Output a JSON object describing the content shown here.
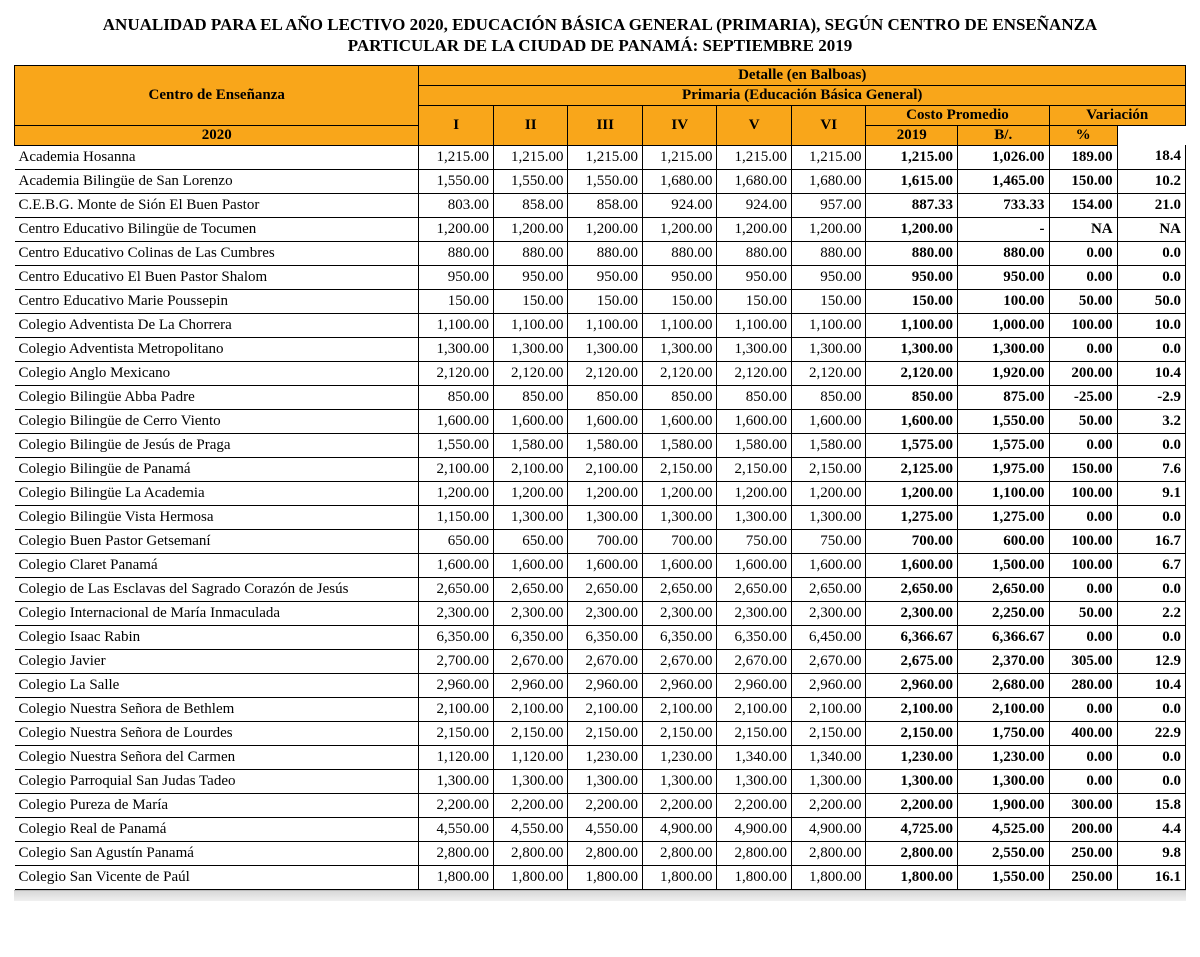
{
  "title_line1": "ANUALIDAD PARA EL AÑO LECTIVO 2020,  EDUCACIÓN BÁSICA GENERAL (PRIMARIA), SEGÚN CENTRO DE ENSEÑANZA",
  "title_line2": "PARTICULAR DE LA CIUDAD DE PANAMÁ:  SEPTIEMBRE 2019",
  "header": {
    "centro": "Centro de Enseñanza",
    "detalle": "Detalle (en Balboas)",
    "primaria": "Primaria (Educación Básica General)",
    "grades": [
      "I",
      "II",
      "III",
      "IV",
      "V",
      "VI"
    ],
    "costo": "Costo Promedio",
    "variacion": "Variación",
    "y2020": "2020",
    "y2019": "2019",
    "bal": "B/.",
    "pct": "%"
  },
  "colors": {
    "header_bg": "#f9a61a",
    "text": "#000000",
    "border": "#000000",
    "background": "#ffffff"
  },
  "rows": [
    {
      "name": "Academia Hosanna",
      "g": [
        "1,215.00",
        "1,215.00",
        "1,215.00",
        "1,215.00",
        "1,215.00",
        "1,215.00"
      ],
      "avg20": "1,215.00",
      "avg19": "1,026.00",
      "varb": "189.00",
      "varp": "18.4"
    },
    {
      "name": "Academia Bilingüe de San Lorenzo",
      "g": [
        "1,550.00",
        "1,550.00",
        "1,550.00",
        "1,680.00",
        "1,680.00",
        "1,680.00"
      ],
      "avg20": "1,615.00",
      "avg19": "1,465.00",
      "varb": "150.00",
      "varp": "10.2"
    },
    {
      "name": "C.E.B.G. Monte de Sión El Buen Pastor",
      "g": [
        "803.00",
        "858.00",
        "858.00",
        "924.00",
        "924.00",
        "957.00"
      ],
      "avg20": "887.33",
      "avg19": "733.33",
      "varb": "154.00",
      "varp": "21.0"
    },
    {
      "name": "Centro Educativo Bilingüe de Tocumen",
      "g": [
        "1,200.00",
        "1,200.00",
        "1,200.00",
        "1,200.00",
        "1,200.00",
        "1,200.00"
      ],
      "avg20": "1,200.00",
      "avg19": "-",
      "varb": "NA",
      "varp": "NA"
    },
    {
      "name": "Centro Educativo Colinas de Las Cumbres",
      "g": [
        "880.00",
        "880.00",
        "880.00",
        "880.00",
        "880.00",
        "880.00"
      ],
      "avg20": "880.00",
      "avg19": "880.00",
      "varb": "0.00",
      "varp": "0.0"
    },
    {
      "name": "Centro Educativo El Buen Pastor Shalom",
      "g": [
        "950.00",
        "950.00",
        "950.00",
        "950.00",
        "950.00",
        "950.00"
      ],
      "avg20": "950.00",
      "avg19": "950.00",
      "varb": "0.00",
      "varp": "0.0"
    },
    {
      "name": "Centro Educativo Marie Poussepin",
      "g": [
        "150.00",
        "150.00",
        "150.00",
        "150.00",
        "150.00",
        "150.00"
      ],
      "avg20": "150.00",
      "avg19": "100.00",
      "varb": "50.00",
      "varp": "50.0"
    },
    {
      "name": "Colegio Adventista De La Chorrera",
      "g": [
        "1,100.00",
        "1,100.00",
        "1,100.00",
        "1,100.00",
        "1,100.00",
        "1,100.00"
      ],
      "avg20": "1,100.00",
      "avg19": "1,000.00",
      "varb": "100.00",
      "varp": "10.0"
    },
    {
      "name": "Colegio Adventista Metropolitano",
      "g": [
        "1,300.00",
        "1,300.00",
        "1,300.00",
        "1,300.00",
        "1,300.00",
        "1,300.00"
      ],
      "avg20": "1,300.00",
      "avg19": "1,300.00",
      "varb": "0.00",
      "varp": "0.0"
    },
    {
      "name": "Colegio Anglo Mexicano",
      "g": [
        "2,120.00",
        "2,120.00",
        "2,120.00",
        "2,120.00",
        "2,120.00",
        "2,120.00"
      ],
      "avg20": "2,120.00",
      "avg19": "1,920.00",
      "varb": "200.00",
      "varp": "10.4"
    },
    {
      "name": "Colegio Bilingüe Abba Padre",
      "g": [
        "850.00",
        "850.00",
        "850.00",
        "850.00",
        "850.00",
        "850.00"
      ],
      "avg20": "850.00",
      "avg19": "875.00",
      "varb": "-25.00",
      "varp": "-2.9"
    },
    {
      "name": "Colegio Bilingüe de Cerro Viento",
      "g": [
        "1,600.00",
        "1,600.00",
        "1,600.00",
        "1,600.00",
        "1,600.00",
        "1,600.00"
      ],
      "avg20": "1,600.00",
      "avg19": "1,550.00",
      "varb": "50.00",
      "varp": "3.2"
    },
    {
      "name": "Colegio Bilingüe de Jesús de Praga",
      "g": [
        "1,550.00",
        "1,580.00",
        "1,580.00",
        "1,580.00",
        "1,580.00",
        "1,580.00"
      ],
      "avg20": "1,575.00",
      "avg19": "1,575.00",
      "varb": "0.00",
      "varp": "0.0"
    },
    {
      "name": "Colegio Bilingüe de Panamá",
      "g": [
        "2,100.00",
        "2,100.00",
        "2,100.00",
        "2,150.00",
        "2,150.00",
        "2,150.00"
      ],
      "avg20": "2,125.00",
      "avg19": "1,975.00",
      "varb": "150.00",
      "varp": "7.6"
    },
    {
      "name": "Colegio Bilingüe La Academia",
      "g": [
        "1,200.00",
        "1,200.00",
        "1,200.00",
        "1,200.00",
        "1,200.00",
        "1,200.00"
      ],
      "avg20": "1,200.00",
      "avg19": "1,100.00",
      "varb": "100.00",
      "varp": "9.1"
    },
    {
      "name": "Colegio Bilingüe Vista Hermosa",
      "g": [
        "1,150.00",
        "1,300.00",
        "1,300.00",
        "1,300.00",
        "1,300.00",
        "1,300.00"
      ],
      "avg20": "1,275.00",
      "avg19": "1,275.00",
      "varb": "0.00",
      "varp": "0.0"
    },
    {
      "name": "Colegio Buen Pastor Getsemaní",
      "g": [
        "650.00",
        "650.00",
        "700.00",
        "700.00",
        "750.00",
        "750.00"
      ],
      "avg20": "700.00",
      "avg19": "600.00",
      "varb": "100.00",
      "varp": "16.7"
    },
    {
      "name": "Colegio Claret Panamá",
      "g": [
        "1,600.00",
        "1,600.00",
        "1,600.00",
        "1,600.00",
        "1,600.00",
        "1,600.00"
      ],
      "avg20": "1,600.00",
      "avg19": "1,500.00",
      "varb": "100.00",
      "varp": "6.7"
    },
    {
      "name": "Colegio de Las Esclavas del Sagrado Corazón de Jesús",
      "g": [
        "2,650.00",
        "2,650.00",
        "2,650.00",
        "2,650.00",
        "2,650.00",
        "2,650.00"
      ],
      "avg20": "2,650.00",
      "avg19": "2,650.00",
      "varb": "0.00",
      "varp": "0.0"
    },
    {
      "name": "Colegio Internacional de María Inmaculada",
      "g": [
        "2,300.00",
        "2,300.00",
        "2,300.00",
        "2,300.00",
        "2,300.00",
        "2,300.00"
      ],
      "avg20": "2,300.00",
      "avg19": "2,250.00",
      "varb": "50.00",
      "varp": "2.2"
    },
    {
      "name": "Colegio Isaac Rabin",
      "g": [
        "6,350.00",
        "6,350.00",
        "6,350.00",
        "6,350.00",
        "6,350.00",
        "6,450.00"
      ],
      "avg20": "6,366.67",
      "avg19": "6,366.67",
      "varb": "0.00",
      "varp": "0.0"
    },
    {
      "name": "Colegio Javier",
      "g": [
        "2,700.00",
        "2,670.00",
        "2,670.00",
        "2,670.00",
        "2,670.00",
        "2,670.00"
      ],
      "avg20": "2,675.00",
      "avg19": "2,370.00",
      "varb": "305.00",
      "varp": "12.9"
    },
    {
      "name": "Colegio La Salle",
      "g": [
        "2,960.00",
        "2,960.00",
        "2,960.00",
        "2,960.00",
        "2,960.00",
        "2,960.00"
      ],
      "avg20": "2,960.00",
      "avg19": "2,680.00",
      "varb": "280.00",
      "varp": "10.4"
    },
    {
      "name": "Colegio Nuestra Señora de Bethlem",
      "g": [
        "2,100.00",
        "2,100.00",
        "2,100.00",
        "2,100.00",
        "2,100.00",
        "2,100.00"
      ],
      "avg20": "2,100.00",
      "avg19": "2,100.00",
      "varb": "0.00",
      "varp": "0.0"
    },
    {
      "name": "Colegio Nuestra Señora de Lourdes",
      "g": [
        "2,150.00",
        "2,150.00",
        "2,150.00",
        "2,150.00",
        "2,150.00",
        "2,150.00"
      ],
      "avg20": "2,150.00",
      "avg19": "1,750.00",
      "varb": "400.00",
      "varp": "22.9"
    },
    {
      "name": "Colegio Nuestra Señora del Carmen",
      "g": [
        "1,120.00",
        "1,120.00",
        "1,230.00",
        "1,230.00",
        "1,340.00",
        "1,340.00"
      ],
      "avg20": "1,230.00",
      "avg19": "1,230.00",
      "varb": "0.00",
      "varp": "0.0"
    },
    {
      "name": "Colegio Parroquial San Judas Tadeo",
      "g": [
        "1,300.00",
        "1,300.00",
        "1,300.00",
        "1,300.00",
        "1,300.00",
        "1,300.00"
      ],
      "avg20": "1,300.00",
      "avg19": "1,300.00",
      "varb": "0.00",
      "varp": "0.0"
    },
    {
      "name": "Colegio Pureza de María",
      "g": [
        "2,200.00",
        "2,200.00",
        "2,200.00",
        "2,200.00",
        "2,200.00",
        "2,200.00"
      ],
      "avg20": "2,200.00",
      "avg19": "1,900.00",
      "varb": "300.00",
      "varp": "15.8"
    },
    {
      "name": "Colegio Real de Panamá",
      "g": [
        "4,550.00",
        "4,550.00",
        "4,550.00",
        "4,900.00",
        "4,900.00",
        "4,900.00"
      ],
      "avg20": "4,725.00",
      "avg19": "4,525.00",
      "varb": "200.00",
      "varp": "4.4"
    },
    {
      "name": "Colegio San Agustín Panamá",
      "g": [
        "2,800.00",
        "2,800.00",
        "2,800.00",
        "2,800.00",
        "2,800.00",
        "2,800.00"
      ],
      "avg20": "2,800.00",
      "avg19": "2,550.00",
      "varb": "250.00",
      "varp": "9.8"
    },
    {
      "name": "Colegio San Vicente de Paúl",
      "g": [
        "1,800.00",
        "1,800.00",
        "1,800.00",
        "1,800.00",
        "1,800.00",
        "1,800.00"
      ],
      "avg20": "1,800.00",
      "avg19": "1,550.00",
      "varb": "250.00",
      "varp": "16.1"
    }
  ]
}
